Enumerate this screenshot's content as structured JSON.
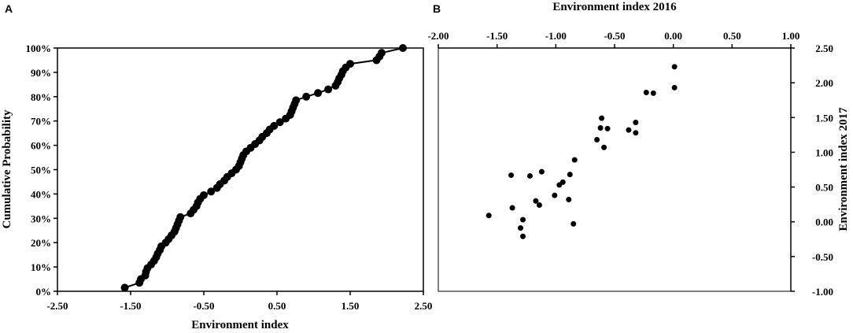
{
  "chart_data": [
    {
      "panel": "A",
      "type": "line",
      "xlabel": "Environment index",
      "ylabel": "Cumulative Probability",
      "xlim": [
        -2.5,
        2.5
      ],
      "ylim": [
        0,
        100
      ],
      "xticks": [
        "-2.50",
        "-1.50",
        "-0.50",
        "0.50",
        "1.50",
        "2.50"
      ],
      "yticks": [
        "0%",
        "10%",
        "20%",
        "30%",
        "40%",
        "50%",
        "60%",
        "70%",
        "80%",
        "90%",
        "100%"
      ],
      "grid": false,
      "series": [
        {
          "points": [
            [
              -1.58,
              1.5
            ],
            [
              -1.38,
              3.5
            ],
            [
              -1.36,
              5
            ],
            [
              -1.3,
              6.5
            ],
            [
              -1.29,
              8
            ],
            [
              -1.27,
              9.5
            ],
            [
              -1.22,
              11
            ],
            [
              -1.18,
              12.5
            ],
            [
              -1.15,
              14
            ],
            [
              -1.13,
              15.5
            ],
            [
              -1.1,
              17
            ],
            [
              -1.08,
              18.5
            ],
            [
              -1.02,
              20
            ],
            [
              -0.98,
              21.5
            ],
            [
              -0.94,
              23
            ],
            [
              -0.9,
              24.5
            ],
            [
              -0.88,
              26
            ],
            [
              -0.86,
              27.5
            ],
            [
              -0.84,
              29
            ],
            [
              -0.82,
              30.5
            ],
            [
              -0.68,
              32
            ],
            [
              -0.64,
              33.5
            ],
            [
              -0.6,
              35
            ],
            [
              -0.58,
              36.5
            ],
            [
              -0.55,
              38
            ],
            [
              -0.5,
              39.5
            ],
            [
              -0.4,
              41
            ],
            [
              -0.32,
              42.5
            ],
            [
              -0.28,
              44
            ],
            [
              -0.22,
              45.5
            ],
            [
              -0.18,
              47
            ],
            [
              -0.12,
              48.5
            ],
            [
              -0.06,
              50
            ],
            [
              -0.02,
              51.5
            ],
            [
              0.0,
              53
            ],
            [
              0.02,
              54.5
            ],
            [
              0.04,
              56
            ],
            [
              0.08,
              57.5
            ],
            [
              0.14,
              59
            ],
            [
              0.2,
              60.5
            ],
            [
              0.26,
              62
            ],
            [
              0.3,
              63.5
            ],
            [
              0.36,
              65
            ],
            [
              0.4,
              66.5
            ],
            [
              0.46,
              68
            ],
            [
              0.54,
              69.5
            ],
            [
              0.62,
              71
            ],
            [
              0.68,
              72.5
            ],
            [
              0.7,
              74
            ],
            [
              0.72,
              75.5
            ],
            [
              0.74,
              77
            ],
            [
              0.76,
              78.5
            ],
            [
              0.9,
              80
            ],
            [
              1.06,
              81.5
            ],
            [
              1.2,
              83
            ],
            [
              1.3,
              84.5
            ],
            [
              1.33,
              86
            ],
            [
              1.35,
              87.5
            ],
            [
              1.38,
              89
            ],
            [
              1.4,
              90.5
            ],
            [
              1.44,
              92
            ],
            [
              1.5,
              93.5
            ],
            [
              1.86,
              95
            ],
            [
              1.9,
              96.5
            ],
            [
              1.93,
              98
            ],
            [
              2.22,
              100
            ]
          ]
        }
      ]
    },
    {
      "panel": "B",
      "type": "scatter",
      "xlabel": "Environment index 2016",
      "ylabel": "Environment index 2017",
      "xlim": [
        -2.0,
        1.0
      ],
      "ylim": [
        -1.0,
        2.5
      ],
      "xticks": [
        "-2.00",
        "-1.50",
        "-1.00",
        "-0.50",
        "0.00",
        "0.50",
        "1.00"
      ],
      "yticks": [
        "2.50",
        "2.00",
        "1.50",
        "1.00",
        "0.50",
        "0.00",
        "-0.50",
        "-1.00"
      ],
      "grid": false,
      "series": [
        {
          "points": [
            [
              -1.57,
              0.09
            ],
            [
              -1.38,
              0.67
            ],
            [
              -1.37,
              0.2
            ],
            [
              -1.3,
              -0.09
            ],
            [
              -1.28,
              0.03
            ],
            [
              -1.28,
              -0.21
            ],
            [
              -1.22,
              0.66
            ],
            [
              -1.17,
              0.3
            ],
            [
              -1.14,
              0.24
            ],
            [
              -1.12,
              0.72
            ],
            [
              -1.01,
              0.38
            ],
            [
              -0.97,
              0.53
            ],
            [
              -0.94,
              0.57
            ],
            [
              -0.89,
              0.32
            ],
            [
              -0.88,
              0.68
            ],
            [
              -0.85,
              -0.03
            ],
            [
              -0.84,
              0.89
            ],
            [
              -0.65,
              1.18
            ],
            [
              -0.62,
              1.35
            ],
            [
              -0.61,
              1.49
            ],
            [
              -0.59,
              1.07
            ],
            [
              -0.56,
              1.34
            ],
            [
              -0.38,
              1.32
            ],
            [
              -0.32,
              1.43
            ],
            [
              -0.32,
              1.28
            ],
            [
              -0.23,
              1.86
            ],
            [
              -0.17,
              1.85
            ],
            [
              0.01,
              2.23
            ],
            [
              0.01,
              1.93
            ]
          ]
        }
      ]
    }
  ]
}
